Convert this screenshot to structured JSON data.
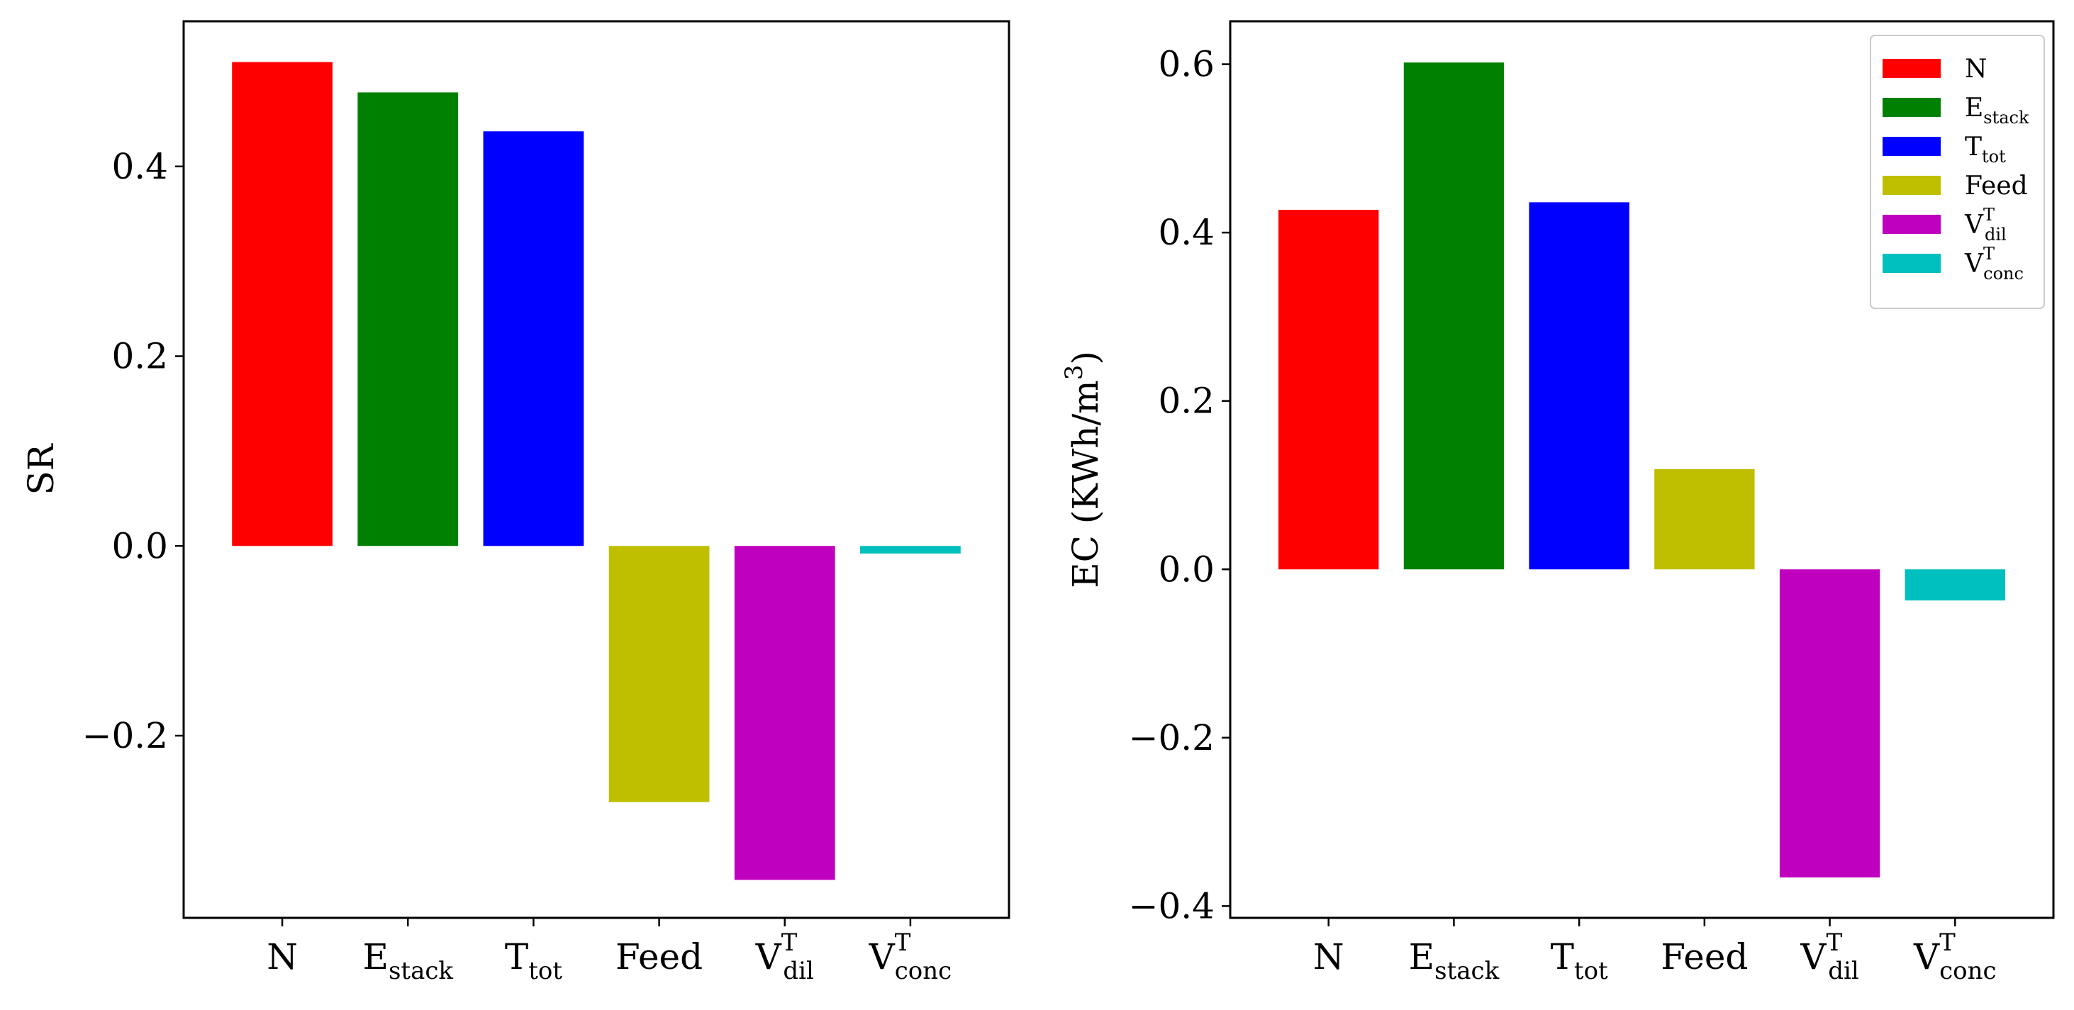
{
  "chart_data": [
    {
      "type": "bar",
      "categories": [
        {
          "base": "N",
          "sup": "",
          "sub": ""
        },
        {
          "base": "E",
          "sup": "",
          "sub": "stack"
        },
        {
          "base": "T",
          "sup": "",
          "sub": "tot"
        },
        {
          "base": "Feed",
          "sup": "",
          "sub": ""
        },
        {
          "base": "V",
          "sup": "T",
          "sub": "dil"
        },
        {
          "base": "V",
          "sup": "T",
          "sub": "conc"
        }
      ],
      "values": [
        0.51,
        0.478,
        0.437,
        -0.27,
        -0.352,
        -0.008
      ],
      "colors": [
        "#ff0000",
        "#008000",
        "#0000ff",
        "#bfbf00",
        "#bf00bf",
        "#00bfbf"
      ],
      "ylabel": "SR",
      "ylim": [
        -0.392,
        0.553
      ],
      "yticks": [
        -0.2,
        0.0,
        0.2,
        0.4
      ],
      "ytick_labels": [
        "−0.2",
        "0.0",
        "0.2",
        "0.4"
      ],
      "legend": false,
      "grid": false
    },
    {
      "type": "bar",
      "categories": [
        {
          "base": "N",
          "sup": "",
          "sub": ""
        },
        {
          "base": "E",
          "sup": "",
          "sub": "stack"
        },
        {
          "base": "T",
          "sup": "",
          "sub": "tot"
        },
        {
          "base": "Feed",
          "sup": "",
          "sub": ""
        },
        {
          "base": "V",
          "sup": "T",
          "sub": "dil"
        },
        {
          "base": "V",
          "sup": "T",
          "sub": "conc"
        }
      ],
      "values": [
        0.427,
        0.602,
        0.436,
        0.119,
        -0.366,
        -0.037
      ],
      "colors": [
        "#ff0000",
        "#008000",
        "#0000ff",
        "#bfbf00",
        "#bf00bf",
        "#00bfbf"
      ],
      "ylabel": "EC (KWh/m",
      "ylabel_sup": "3",
      "ylabel_end": ")",
      "ylim": [
        -0.414,
        0.651
      ],
      "yticks": [
        -0.4,
        -0.2,
        0.0,
        0.2,
        0.4,
        0.6
      ],
      "ytick_labels": [
        "−0.4",
        "−0.2",
        "0.0",
        "0.2",
        "0.4",
        "0.6"
      ],
      "legend": true,
      "legend_position": "top-right",
      "grid": false
    }
  ]
}
